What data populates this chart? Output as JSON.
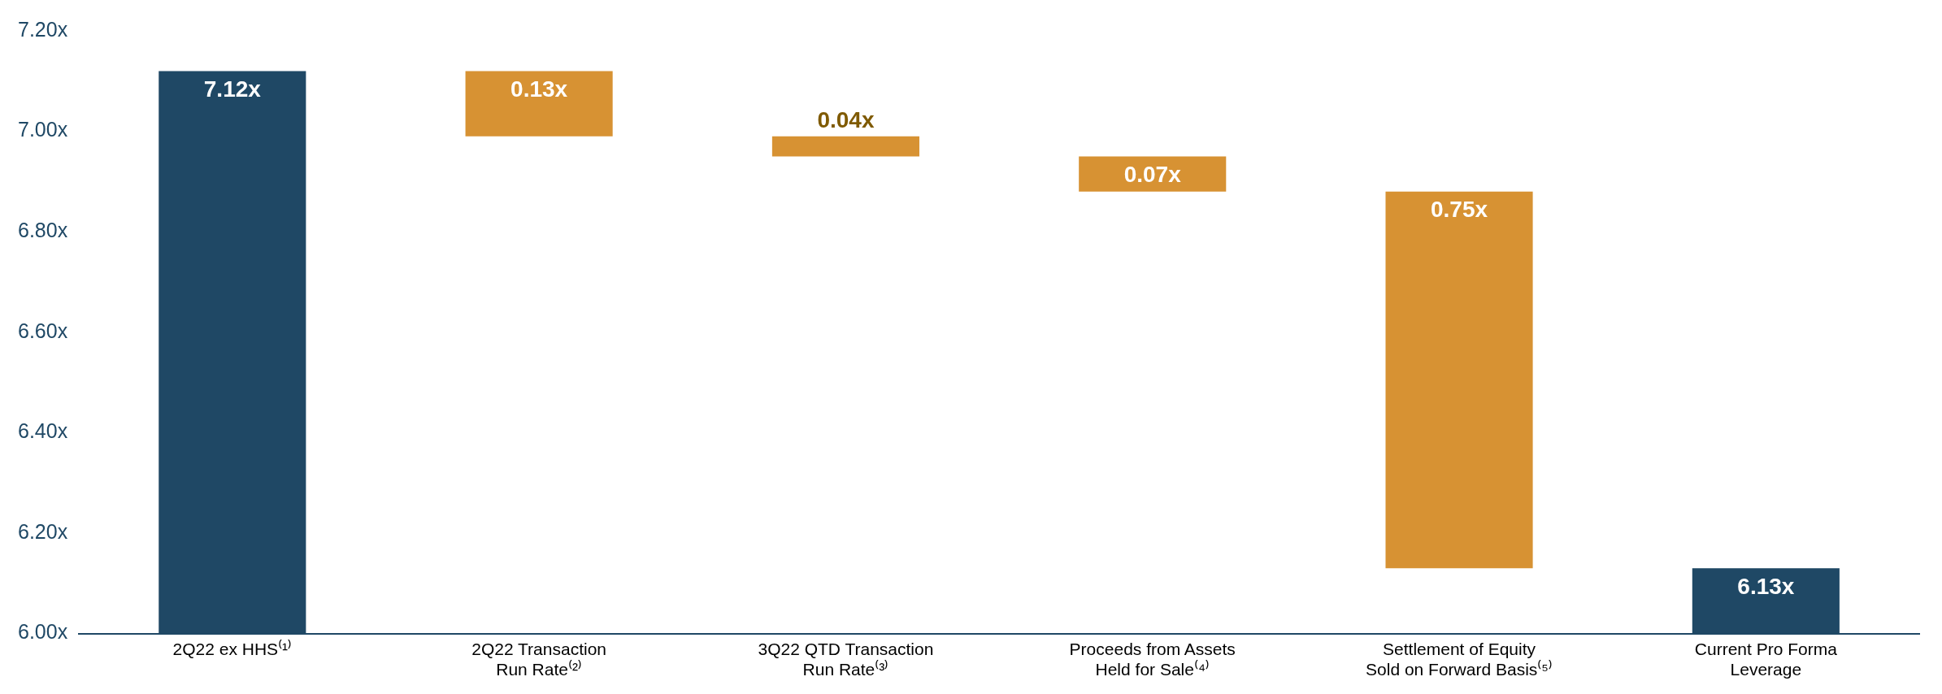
{
  "chart_data": {
    "type": "bar",
    "categories": [
      "2Q22 ex HHS⁽¹⁾",
      "2Q22 Transaction\nRun Rate⁽²⁾",
      "3Q22 QTD Transaction\nRun Rate⁽³⁾",
      "Proceeds from Assets\nHeld for Sale⁽⁴⁾",
      "Settlement of Equity\nSold on Forward Basis⁽⁵⁾",
      "Current Pro Forma\nLeverage"
    ],
    "base": [
      6.0,
      6.99,
      6.95,
      6.88,
      6.13,
      6.0
    ],
    "values": [
      1.12,
      0.13,
      0.04,
      0.07,
      0.75,
      0.13
    ],
    "colors": [
      "#1f4865",
      "#d79233",
      "#d79233",
      "#d79233",
      "#d79233",
      "#1f4865"
    ],
    "value_labels": [
      "7.12x",
      "0.13x",
      "0.04x",
      "0.07x",
      "0.75x",
      "6.13x"
    ],
    "ylim": [
      6.0,
      7.2
    ],
    "yticks": [
      {
        "value": 6.0,
        "label": "6.00x"
      },
      {
        "value": 6.2,
        "label": "6.20x"
      },
      {
        "value": 6.4,
        "label": "6.40x"
      },
      {
        "value": 6.6,
        "label": "6.60x"
      },
      {
        "value": 6.8,
        "label": "6.80x"
      },
      {
        "value": 7.0,
        "label": "7.00x"
      },
      {
        "value": 7.2,
        "label": "7.20x"
      }
    ],
    "grid": false,
    "legend": false
  }
}
